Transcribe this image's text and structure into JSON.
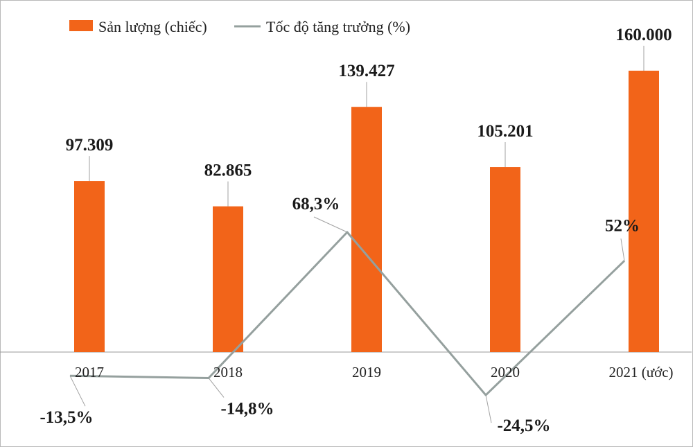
{
  "chart_data": {
    "type": "bar",
    "categories": [
      "2017",
      "2018",
      "2019",
      "2020",
      "2021 (ước)"
    ],
    "series": [
      {
        "name": "Sản lượng (chiếc)",
        "type": "bar",
        "values": [
          97309,
          82865,
          139427,
          105201,
          160000
        ],
        "labels": [
          "97.309",
          "82.865",
          "139.427",
          "105.201",
          "160.000"
        ],
        "color": "#f26419"
      },
      {
        "name": "Tốc độ tăng trưởng (%)",
        "type": "line",
        "values": [
          -13.5,
          -14.8,
          68.3,
          -24.5,
          52
        ],
        "labels": [
          "-13,5%",
          "-14,8%",
          "68,3%",
          "-24,5%",
          "52%"
        ],
        "color": "#95a09e"
      }
    ],
    "legend_position": "top-left",
    "grid": false
  }
}
